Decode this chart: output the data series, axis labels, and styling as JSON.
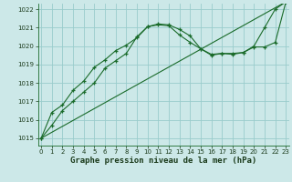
{
  "background_color": "#cce8e8",
  "grid_color": "#99cccc",
  "line_color": "#1a6b2a",
  "xlim": [
    -0.3,
    23.3
  ],
  "ylim": [
    1014.6,
    1022.3
  ],
  "yticks": [
    1015,
    1016,
    1017,
    1018,
    1019,
    1020,
    1021,
    1022
  ],
  "xticks": [
    0,
    1,
    2,
    3,
    4,
    5,
    6,
    7,
    8,
    9,
    10,
    11,
    12,
    13,
    14,
    15,
    16,
    17,
    18,
    19,
    20,
    21,
    22,
    23
  ],
  "series": [
    {
      "x": [
        0,
        23
      ],
      "y": [
        1015.0,
        1022.4
      ],
      "has_markers": false
    },
    {
      "x": [
        0,
        1,
        2,
        3,
        4,
        5,
        6,
        7,
        8,
        9,
        10,
        11,
        12,
        13,
        14,
        15,
        16,
        17,
        18,
        19,
        20,
        21,
        22,
        23
      ],
      "y": [
        1015.0,
        1015.7,
        1016.5,
        1017.0,
        1017.5,
        1018.0,
        1018.8,
        1019.2,
        1019.6,
        1020.5,
        1021.05,
        1021.2,
        1021.15,
        1020.9,
        1020.55,
        1019.85,
        1019.5,
        1019.6,
        1019.55,
        1019.65,
        1020.0,
        1021.0,
        1022.0,
        1022.4
      ],
      "has_markers": true
    },
    {
      "x": [
        0,
        1,
        2,
        3,
        4,
        5,
        6,
        7,
        8,
        9,
        10,
        11,
        12,
        13,
        14,
        15,
        16,
        17,
        18,
        19,
        20,
        21,
        22,
        23
      ],
      "y": [
        1015.0,
        1016.4,
        1016.8,
        1017.6,
        1018.1,
        1018.85,
        1019.25,
        1019.75,
        1020.05,
        1020.45,
        1021.05,
        1021.15,
        1021.1,
        1020.6,
        1020.2,
        1019.85,
        1019.55,
        1019.6,
        1019.6,
        1019.65,
        1019.95,
        1019.95,
        1020.2,
        1022.4
      ],
      "has_markers": true
    }
  ],
  "xlabel": "Graphe pression niveau de la mer (hPa)",
  "xlabel_fontsize": 6.5,
  "tick_fontsize": 5.0
}
